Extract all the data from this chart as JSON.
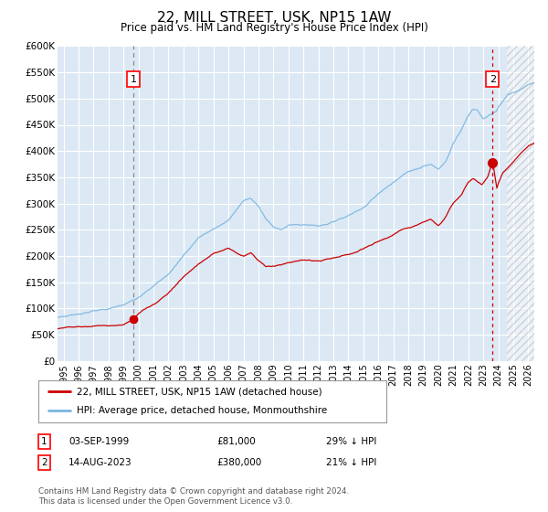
{
  "title": "22, MILL STREET, USK, NP15 1AW",
  "subtitle": "Price paid vs. HM Land Registry's House Price Index (HPI)",
  "hpi_label": "HPI: Average price, detached house, Monmouthshire",
  "price_label": "22, MILL STREET, USK, NP15 1AW (detached house)",
  "annotation1": {
    "label": "1",
    "date_str": "03-SEP-1999",
    "price": 81000,
    "pct": "29% ↓ HPI",
    "x_year": 1999.67
  },
  "annotation2": {
    "label": "2",
    "date_str": "14-AUG-2023",
    "price": 380000,
    "pct": "21% ↓ HPI",
    "x_year": 2023.62
  },
  "ylim": [
    0,
    600000
  ],
  "xlim_start": 1994.6,
  "xlim_end": 2026.4,
  "hpi_color": "#7ab5df",
  "price_color": "#cc0000",
  "plot_bg": "#dce9f5",
  "grid_color": "#ffffff",
  "hatch_start": 2024.58,
  "copyright_text": "Contains HM Land Registry data © Crown copyright and database right 2024.\nThis data is licensed under the Open Government Licence v3.0.",
  "yticks": [
    0,
    50000,
    100000,
    150000,
    200000,
    250000,
    300000,
    350000,
    400000,
    450000,
    500000,
    550000,
    600000
  ],
  "xticks": [
    1995,
    1996,
    1997,
    1998,
    1999,
    2000,
    2001,
    2002,
    2003,
    2004,
    2005,
    2006,
    2007,
    2008,
    2009,
    2010,
    2011,
    2012,
    2013,
    2014,
    2015,
    2016,
    2017,
    2018,
    2019,
    2020,
    2021,
    2022,
    2023,
    2024,
    2025,
    2026
  ],
  "hpi_key_years": [
    1994.6,
    1995,
    1996,
    1997,
    1998,
    1999,
    2000,
    2001,
    2002,
    2003,
    2004,
    2005,
    2006,
    2007,
    2007.5,
    2008,
    2008.5,
    2009,
    2009.5,
    2010,
    2011,
    2012,
    2013,
    2014,
    2015,
    2016,
    2017,
    2018,
    2019,
    2019.5,
    2020,
    2020.5,
    2021,
    2021.5,
    2022,
    2022.3,
    2022.6,
    2022.9,
    2023,
    2023.3,
    2023.6,
    2023.9,
    2024,
    2024.3,
    2024.6,
    2025,
    2025.5,
    2026,
    2026.4
  ],
  "hpi_key_vals": [
    83000,
    85000,
    90000,
    95000,
    100000,
    106000,
    120000,
    142000,
    168000,
    200000,
    235000,
    252000,
    268000,
    305000,
    310000,
    295000,
    270000,
    255000,
    252000,
    258000,
    260000,
    258000,
    265000,
    278000,
    293000,
    318000,
    343000,
    360000,
    372000,
    375000,
    365000,
    380000,
    415000,
    440000,
    470000,
    480000,
    478000,
    465000,
    462000,
    468000,
    472000,
    478000,
    485000,
    495000,
    505000,
    510000,
    515000,
    525000,
    530000
  ],
  "price_key_years": [
    1994.6,
    1995,
    1996,
    1997,
    1998,
    1999,
    1999.67,
    2000,
    2001,
    2002,
    2003,
    2004,
    2004.5,
    2005,
    2005.5,
    2006,
    2007,
    2007.5,
    2008,
    2008.5,
    2009,
    2009.5,
    2010,
    2011,
    2012,
    2013,
    2014,
    2015,
    2016,
    2017,
    2018,
    2019,
    2019.5,
    2020,
    2020.5,
    2021,
    2021.5,
    2022,
    2022.3,
    2022.6,
    2022.9,
    2023,
    2023.3,
    2023.62,
    2023.9,
    2024,
    2024.3,
    2025,
    2026,
    2026.4
  ],
  "price_key_vals": [
    62000,
    63000,
    65000,
    66000,
    68000,
    70000,
    81000,
    90000,
    108000,
    130000,
    160000,
    185000,
    195000,
    205000,
    210000,
    215000,
    200000,
    205000,
    190000,
    180000,
    182000,
    183000,
    188000,
    192000,
    190000,
    195000,
    202000,
    212000,
    228000,
    240000,
    255000,
    265000,
    270000,
    260000,
    275000,
    300000,
    315000,
    340000,
    348000,
    342000,
    335000,
    338000,
    350000,
    380000,
    330000,
    340000,
    360000,
    380000,
    410000,
    415000
  ]
}
